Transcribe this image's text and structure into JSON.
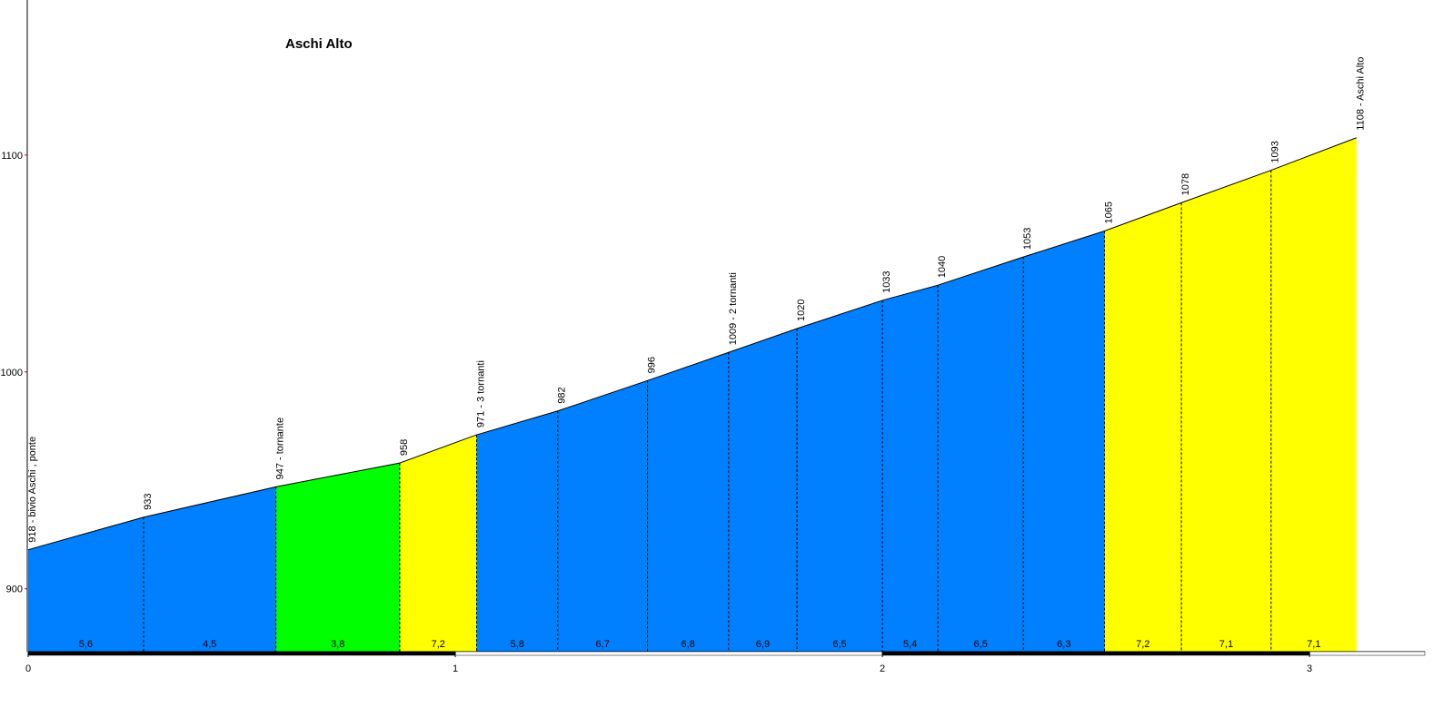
{
  "chart_data": {
    "type": "elevation-profile",
    "title": "Aschi Alto",
    "x": [
      0,
      0.27,
      0.58,
      0.87,
      1.05,
      1.24,
      1.45,
      1.64,
      1.8,
      2.0,
      2.13,
      2.33,
      2.52,
      2.7,
      2.91,
      3.11
    ],
    "values": [
      918,
      933,
      947,
      958,
      971,
      982,
      996,
      1009,
      1020,
      1033,
      1040,
      1053,
      1065,
      1078,
      1093,
      1108
    ],
    "value_labels": [
      "918 - bivio Aschi , ponte",
      "933",
      "947 - tornante",
      "958",
      "971 - 3 tornanti",
      "982",
      "996",
      "1009 - 2 tornanti",
      "1020",
      "1033",
      "1040",
      "1053",
      "1065",
      "1078",
      "1093",
      "1108 - Aschi Alto"
    ],
    "gradients": {
      "values": [
        5.6,
        4.5,
        3.8,
        7.2,
        5.8,
        6.7,
        6.8,
        6.9,
        6.5,
        5.4,
        6.5,
        6.3,
        7.2,
        7.1,
        7.1
      ],
      "value_labels": [
        "5,6",
        "4,5",
        "3,8",
        "7,2",
        "5,8",
        "6,7",
        "6,8",
        "6,9",
        "6,5",
        "5,4",
        "6,5",
        "6,3",
        "7,2",
        "7,1",
        "7,1"
      ],
      "colors": [
        "#0080ff",
        "#0080ff",
        "#00ff00",
        "#ffff00",
        "#0080ff",
        "#0080ff",
        "#0080ff",
        "#0080ff",
        "#0080ff",
        "#0080ff",
        "#0080ff",
        "#0080ff",
        "#ffff00",
        "#ffff00",
        "#ffff00"
      ]
    },
    "xlim": [
      0,
      3.27
    ],
    "xticks": [
      0,
      1,
      2,
      3
    ],
    "ylim": [
      871,
      1171.5
    ],
    "yticks": [
      900,
      1000,
      1100
    ]
  }
}
